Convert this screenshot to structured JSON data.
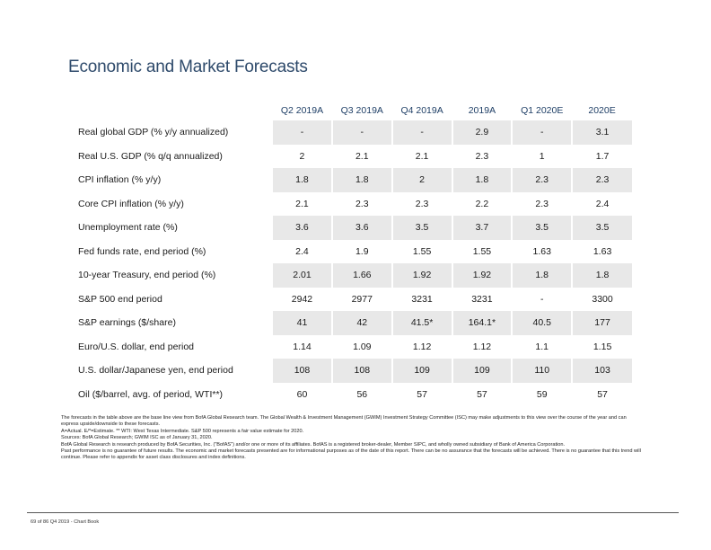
{
  "title": "Economic and Market Forecasts",
  "table": {
    "columns": [
      "Q2 2019A",
      "Q3 2019A",
      "Q4 2019A",
      "2019A",
      "Q1 2020E",
      "2020E"
    ],
    "rows": [
      {
        "label": "Real global GDP (% y/y annualized)",
        "values": [
          "-",
          "-",
          "-",
          "2.9",
          "-",
          "3.1"
        ]
      },
      {
        "label": "Real U.S. GDP (% q/q annualized)",
        "values": [
          "2",
          "2.1",
          "2.1",
          "2.3",
          "1",
          "1.7"
        ]
      },
      {
        "label": "CPI inflation (% y/y)",
        "values": [
          "1.8",
          "1.8",
          "2",
          "1.8",
          "2.3",
          "2.3"
        ]
      },
      {
        "label": "Core CPI inflation (% y/y)",
        "values": [
          "2.1",
          "2.3",
          "2.3",
          "2.2",
          "2.3",
          "2.4"
        ]
      },
      {
        "label": "Unemployment rate (%)",
        "values": [
          "3.6",
          "3.6",
          "3.5",
          "3.7",
          "3.5",
          "3.5"
        ]
      },
      {
        "label": "Fed funds rate, end period (%)",
        "values": [
          "2.4",
          "1.9",
          "1.55",
          "1.55",
          "1.63",
          "1.63"
        ]
      },
      {
        "label": "10-year Treasury, end period (%)",
        "values": [
          "2.01",
          "1.66",
          "1.92",
          "1.92",
          "1.8",
          "1.8"
        ]
      },
      {
        "label": "S&P 500 end period",
        "values": [
          "2942",
          "2977",
          "3231",
          "3231",
          "-",
          "3300"
        ]
      },
      {
        "label": "S&P earnings ($/share)",
        "values": [
          "41",
          "42",
          "41.5*",
          "164.1*",
          "40.5",
          "177"
        ]
      },
      {
        "label": "Euro/U.S. dollar, end period",
        "values": [
          "1.14",
          "1.09",
          "1.12",
          "1.12",
          "1.1",
          "1.15"
        ]
      },
      {
        "label": "U.S. dollar/Japanese yen, end period",
        "values": [
          "108",
          "108",
          "109",
          "109",
          "110",
          "103"
        ]
      },
      {
        "label": "Oil ($/barrel, avg. of period, WTI**)",
        "values": [
          "60",
          "56",
          "57",
          "57",
          "59",
          "57"
        ]
      }
    ]
  },
  "notes": [
    "The forecasts in the table above are the base line view from BofA Global Research team. The Global Wealth & Investment Management (GWIM) Investment Strategy Committee (ISC) may make adjustments to this view over the course of the year and can express upside/downside to these forecasts.",
    "A=Actual. E/*=Estimate. ** WTI: West Texas Intermediate. S&P 500 represents a fair value estimate for 2020.",
    "Sources: BofA Global Research; GWIM ISC as of January 31, 2020.",
    "BofA Global Research is research produced by BofA Securities, Inc. (\"BofAS\") and/or one or more of its affiliates. BofAS is a registered broker-dealer, Member SIPC, and wholly owned subsidiary of Bank of America Corporation.",
    "Past performance is no guarantee of future results. The economic and market forecasts presented are for informational purposes as of the date of this report. There can be no assurance that the forecasts will be achieved. There is no guarantee that this trend will continue. Please refer to appendix for asset class disclosures and index definitions."
  ],
  "footer": "69 of 86 Q4 2019 - Chart Book"
}
